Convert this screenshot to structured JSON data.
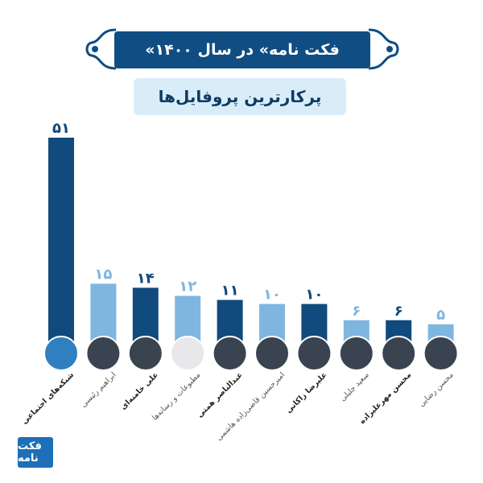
{
  "header": {
    "title": "«فکت نامه» در سال ۱۴۰۰",
    "subtitle": "پرکارترین پروفایل‌ها"
  },
  "logo": {
    "text": "فکت نامه"
  },
  "colors": {
    "dark_bar": "#114a7c",
    "light_bar": "#7fb6e0",
    "title_bg": "#0f4d82",
    "subtitle_bg": "#d9edf9"
  },
  "chart_data": {
    "type": "bar",
    "categories": [
      "شبکه‌های اجتماعی",
      "ابراهیم رئیسی",
      "علی خامنه‌ای",
      "مطبوعات و رسانه‌ها",
      "عبدالناصر همتی",
      "امیرحسین قاضی‌زاده هاشمی",
      "علیرضا زاکانی",
      "سعید جلیلی",
      "محسن مهرعلیزاده",
      "محسن رضایی"
    ],
    "values": [
      51,
      15,
      14,
      12,
      11,
      10,
      10,
      6,
      6,
      5
    ],
    "value_labels": [
      "۵۱",
      "۱۵",
      "۱۴",
      "۱۲",
      "۱۱",
      "۱۰",
      "۱۰",
      "۶",
      "۶",
      "۵"
    ],
    "bar_shades": [
      "dark",
      "light",
      "dark",
      "light",
      "dark",
      "light",
      "dark",
      "light",
      "dark",
      "light"
    ],
    "label_weights": [
      "bold",
      "normal",
      "bold",
      "normal",
      "bold",
      "normal",
      "bold",
      "normal",
      "bold",
      "normal"
    ],
    "title": "پرکارترین پروفایل‌ها",
    "ylim": [
      0,
      51
    ]
  }
}
